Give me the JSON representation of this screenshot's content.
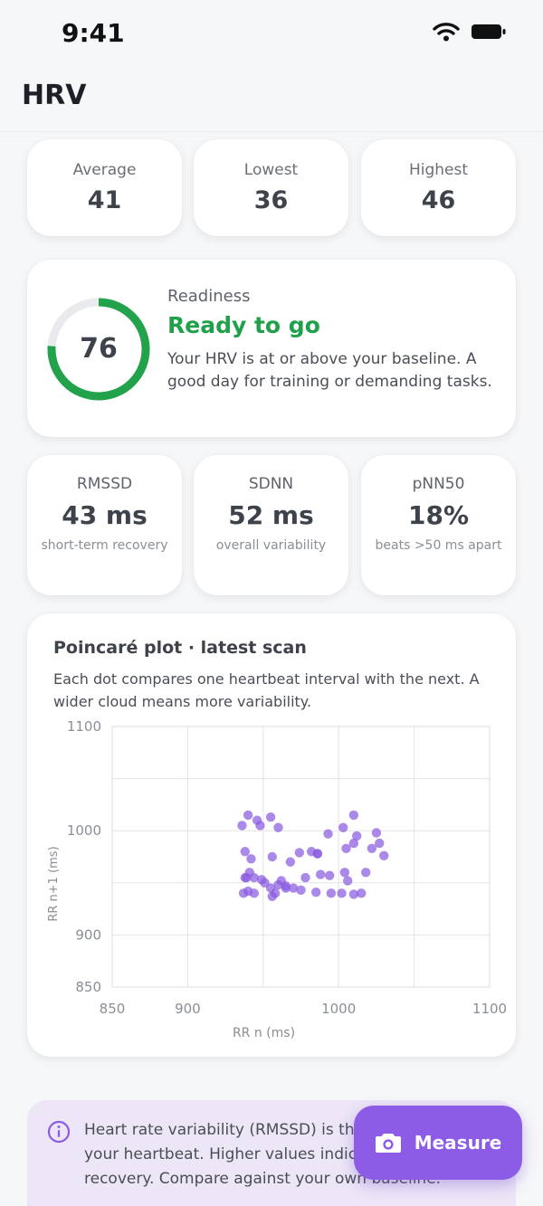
{
  "status_bar": {
    "time": "9:41",
    "icons": [
      "wifi-icon",
      "battery-icon"
    ]
  },
  "header": {
    "title": "HRV"
  },
  "summary": [
    {
      "label": "Average",
      "value": "41"
    },
    {
      "label": "Lowest",
      "value": "36"
    },
    {
      "label": "Highest",
      "value": "46"
    }
  ],
  "readiness": {
    "label": "Readiness",
    "score": "76",
    "score_fraction": 0.76,
    "status": "Ready to go",
    "description": "Your HRV is at or above your baseline. A good day for training or demanding tasks.",
    "colors": {
      "ring": "#21a24b",
      "track": "#e9eaee",
      "status": "#20a04a"
    }
  },
  "metrics": [
    {
      "label": "RMSSD",
      "value": "43 ms",
      "sub": "short-term recovery"
    },
    {
      "label": "SDNN",
      "value": "52 ms",
      "sub": "overall variability"
    },
    {
      "label": "pNN50",
      "value": "18%",
      "sub": "beats >50 ms apart"
    }
  ],
  "poincare": {
    "title": "Poincaré plot · latest scan",
    "description": "Each dot compares one heartbeat interval with the next. A wider cloud means more variability."
  },
  "chart_data": {
    "type": "scatter",
    "xlabel": "RR n (ms)",
    "ylabel": "RR n+1 (ms)",
    "xlim": [
      850,
      1100
    ],
    "ylim": [
      850,
      1100
    ],
    "x_ticks": [
      850,
      900,
      1000,
      1100
    ],
    "y_ticks": [
      850,
      900,
      1000,
      1100
    ],
    "grid": true,
    "color": "#8a5cdf",
    "points": [
      [
        940,
        1015
      ],
      [
        946,
        1010
      ],
      [
        955,
        1013
      ],
      [
        936,
        1005
      ],
      [
        948,
        1005
      ],
      [
        960,
        1003
      ],
      [
        1003,
        1003
      ],
      [
        1010,
        1015
      ],
      [
        993,
        997
      ],
      [
        1012,
        995
      ],
      [
        1025,
        998
      ],
      [
        1010,
        988
      ],
      [
        1005,
        983
      ],
      [
        1027,
        988
      ],
      [
        1022,
        983
      ],
      [
        974,
        979
      ],
      [
        982,
        980
      ],
      [
        956,
        975
      ],
      [
        1030,
        976
      ],
      [
        968,
        970
      ],
      [
        986,
        978
      ],
      [
        938,
        980
      ],
      [
        942,
        973
      ],
      [
        941,
        960
      ],
      [
        939,
        955
      ],
      [
        944,
        955
      ],
      [
        949,
        953
      ],
      [
        938,
        955
      ],
      [
        951,
        950
      ],
      [
        962,
        952
      ],
      [
        978,
        955
      ],
      [
        988,
        958
      ],
      [
        994,
        957
      ],
      [
        1004,
        960
      ],
      [
        1006,
        952
      ],
      [
        960,
        948
      ],
      [
        965,
        947
      ],
      [
        965,
        945
      ],
      [
        970,
        945
      ],
      [
        975,
        943
      ],
      [
        985,
        941
      ],
      [
        995,
        940
      ],
      [
        1010,
        939
      ],
      [
        1002,
        940
      ],
      [
        1015,
        940
      ],
      [
        958,
        940
      ],
      [
        956,
        937
      ],
      [
        944,
        940
      ],
      [
        940,
        942
      ],
      [
        937,
        940
      ],
      [
        955,
        945
      ],
      [
        986,
        978
      ],
      [
        1018,
        960
      ]
    ]
  },
  "info": {
    "text": "Heart rate variability (RMSSD) is the variation in your heartbeat. Higher values indicate better recovery. Compare against your own baseline."
  },
  "fab": {
    "label": "Measure",
    "icon": "camera-icon",
    "color": "#8c5ce6"
  }
}
